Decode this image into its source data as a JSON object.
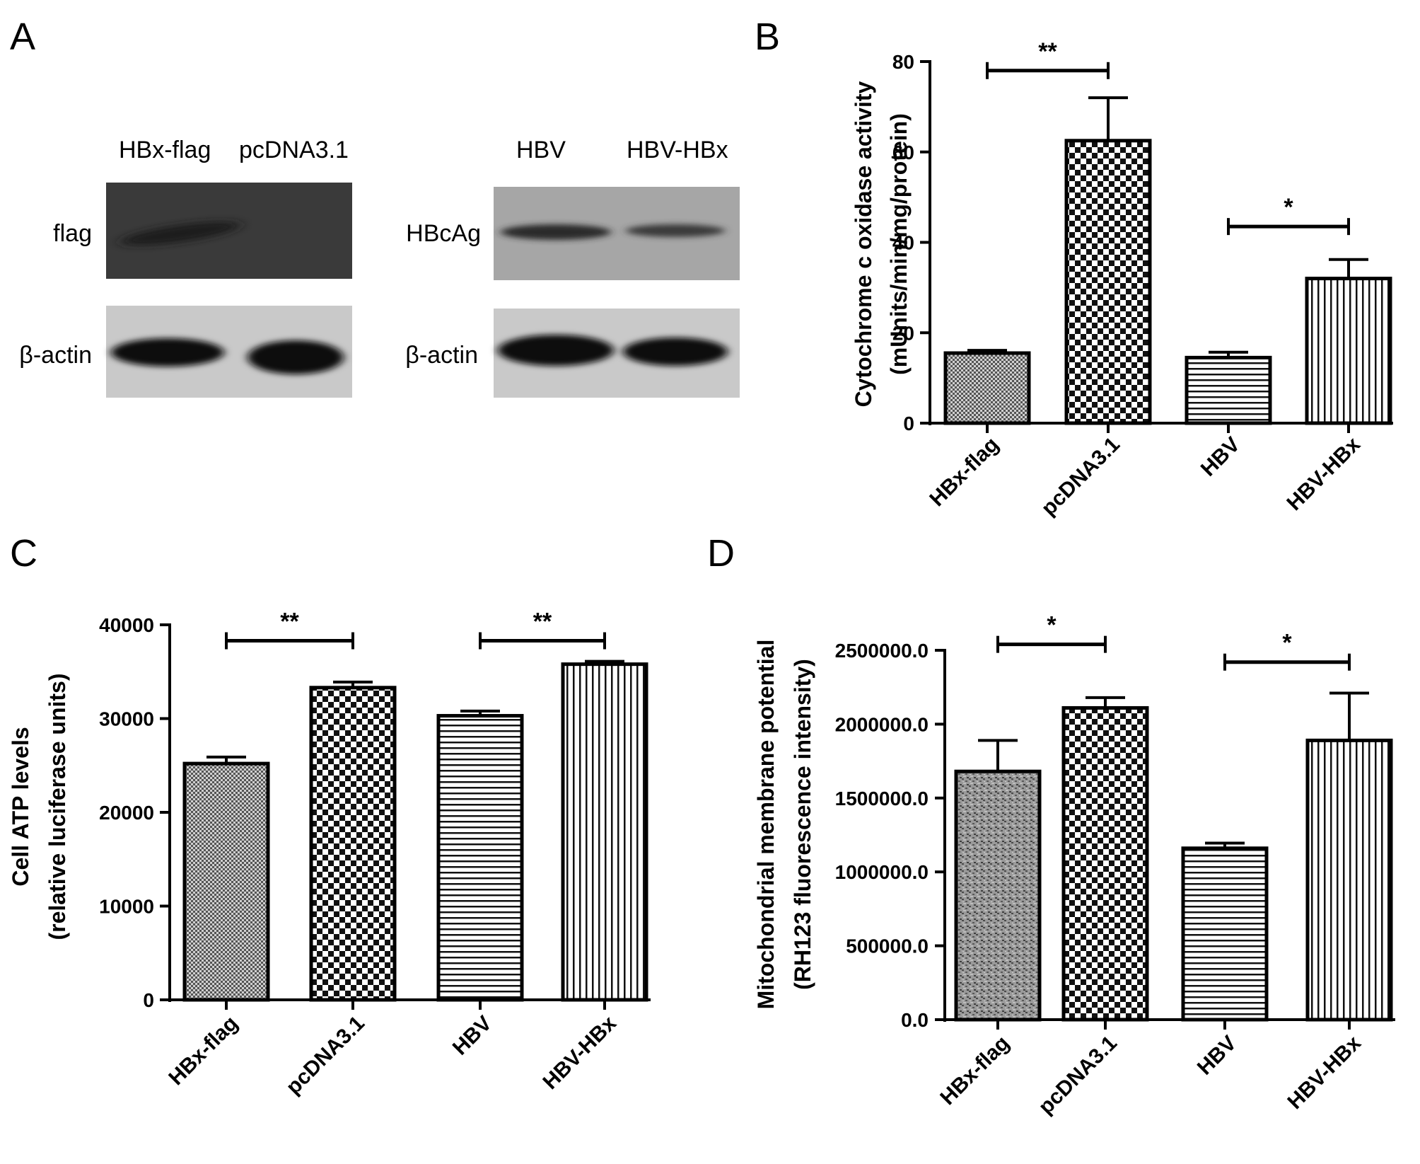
{
  "panel_A": {
    "letter": "A",
    "left_blot": {
      "lane_labels": [
        "HBx-flag",
        "pcDNA3.1"
      ],
      "row_labels": [
        "flag",
        "β-actin"
      ]
    },
    "right_blot": {
      "lane_labels": [
        "HBV",
        "HBV-HBx"
      ],
      "row_labels": [
        "HBcAg",
        "β-actin"
      ]
    }
  },
  "chart_data": [
    {
      "panel": "B",
      "type": "bar",
      "ylabel_lines": [
        "Cytochrome c oxidase activity",
        "(mUnits/min/mg/protein)"
      ],
      "categories": [
        "HBx-flag",
        "pcDNA3.1",
        "HBV",
        "HBV-HBx"
      ],
      "values": [
        15.5,
        62.5,
        14.5,
        32
      ],
      "errors": [
        0.6,
        9.5,
        1.2,
        4.2
      ],
      "patterns": [
        "fine-check",
        "checker",
        "horizontal",
        "vertical"
      ],
      "ylim": [
        0,
        80
      ],
      "yticks": [
        0,
        20,
        40,
        60,
        80
      ],
      "ytick_labels": [
        "0",
        "20",
        "40",
        "60",
        "80"
      ],
      "significance": [
        {
          "from": 0,
          "to": 1,
          "label": "**",
          "y": 78
        },
        {
          "from": 2,
          "to": 3,
          "label": "*",
          "y": 43.5
        }
      ]
    },
    {
      "panel": "C",
      "type": "bar",
      "ylabel_lines": [
        "Cell ATP levels",
        "(relative luciferase units)"
      ],
      "categories": [
        "HBx-flag",
        "pcDNA3.1",
        "HBV",
        "HBV-HBx"
      ],
      "values": [
        25200,
        33300,
        30300,
        35800
      ],
      "errors": [
        700,
        600,
        500,
        300
      ],
      "patterns": [
        "fine-check",
        "checker",
        "horizontal",
        "vertical"
      ],
      "ylim": [
        0,
        40000
      ],
      "yticks": [
        0,
        10000,
        20000,
        30000,
        40000
      ],
      "ytick_labels": [
        "0",
        "10000",
        "20000",
        "30000",
        "40000"
      ],
      "significance": [
        {
          "from": 0,
          "to": 1,
          "label": "**",
          "y": 38300
        },
        {
          "from": 2,
          "to": 3,
          "label": "**",
          "y": 38300
        }
      ]
    },
    {
      "panel": "D",
      "type": "bar",
      "ylabel_lines": [
        "Mitochondrial membrane potential",
        "(RH123 fluorescence intensity)"
      ],
      "categories": [
        "HBx-flag",
        "pcDNA3.1",
        "HBV",
        "HBV-HBx"
      ],
      "values": [
        1680000,
        2110000,
        1160000,
        1890000
      ],
      "errors": [
        210000,
        70000,
        35000,
        320000
      ],
      "patterns": [
        "noise",
        "checker",
        "horizontal",
        "vertical"
      ],
      "ylim": [
        0,
        2500000
      ],
      "yticks": [
        0,
        500000,
        1000000,
        1500000,
        2000000,
        2500000
      ],
      "ytick_labels": [
        "0.0",
        "500000.0",
        "1000000.0",
        "1500000.0",
        "2000000.0",
        "2500000.0"
      ],
      "significance": [
        {
          "from": 0,
          "to": 1,
          "label": "*",
          "y": 2540000
        },
        {
          "from": 2,
          "to": 3,
          "label": "*",
          "y": 2420000
        }
      ]
    }
  ]
}
